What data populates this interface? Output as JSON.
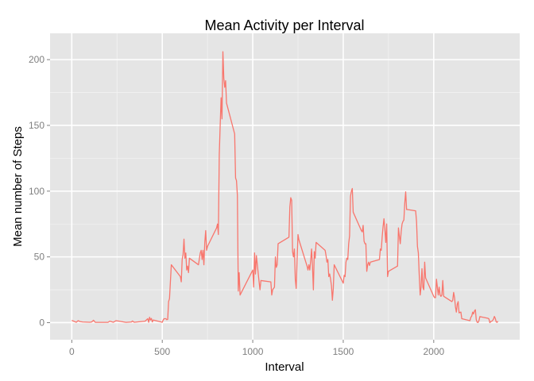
{
  "chart_data": {
    "type": "line",
    "title": "Mean Activity per Interval",
    "xlabel": "Interval",
    "ylabel": "Mean number of Steps",
    "xlim": [
      -120,
      2475
    ],
    "ylim": [
      -13,
      220
    ],
    "xticks": [
      0,
      500,
      1000,
      1500,
      2000
    ],
    "yticks": [
      0,
      50,
      100,
      150,
      200
    ],
    "grid": true,
    "series": [
      {
        "color": "#f8766d",
        "points": [
          [
            0,
            1.7
          ],
          [
            25,
            0.3
          ],
          [
            35,
            1.5
          ],
          [
            45,
            0.8
          ],
          [
            60,
            0.5
          ],
          [
            100,
            0.3
          ],
          [
            110,
            0.5
          ],
          [
            120,
            1.8
          ],
          [
            130,
            0.2
          ],
          [
            200,
            0.2
          ],
          [
            210,
            1.1
          ],
          [
            230,
            0.3
          ],
          [
            245,
            1.5
          ],
          [
            300,
            0.2
          ],
          [
            330,
            0.5
          ],
          [
            335,
            1.2
          ],
          [
            345,
            0.3
          ],
          [
            405,
            1.1
          ],
          [
            420,
            3.0
          ],
          [
            425,
            0.2
          ],
          [
            430,
            4.1
          ],
          [
            435,
            2.0
          ],
          [
            440,
            3.2
          ],
          [
            445,
            0.5
          ],
          [
            450,
            2.0
          ],
          [
            500,
            0.3
          ],
          [
            505,
            2.0
          ],
          [
            510,
            3.0
          ],
          [
            520,
            3.0
          ],
          [
            525,
            2.2
          ],
          [
            530,
            2.5
          ],
          [
            535,
            16.0
          ],
          [
            540,
            18.3
          ],
          [
            550,
            44.0
          ],
          [
            600,
            35.0
          ],
          [
            605,
            31.0
          ],
          [
            610,
            48.0
          ],
          [
            615,
            52.0
          ],
          [
            620,
            63.5
          ],
          [
            625,
            49.0
          ],
          [
            630,
            53.0
          ],
          [
            635,
            40.0
          ],
          [
            640,
            43.0
          ],
          [
            645,
            38.0
          ],
          [
            650,
            49.0
          ],
          [
            700,
            44.0
          ],
          [
            710,
            53.0
          ],
          [
            715,
            55.0
          ],
          [
            720,
            48.0
          ],
          [
            725,
            55.0
          ],
          [
            730,
            44.0
          ],
          [
            735,
            61.0
          ],
          [
            740,
            70.0
          ],
          [
            745,
            55.0
          ],
          [
            750,
            58.0
          ],
          [
            800,
            72.0
          ],
          [
            805,
            75.0
          ],
          [
            810,
            67.0
          ],
          [
            815,
            128.0
          ],
          [
            820,
            150.0
          ],
          [
            825,
            171.0
          ],
          [
            830,
            155.0
          ],
          [
            835,
            206.0
          ],
          [
            840,
            186.0
          ],
          [
            845,
            179.0
          ],
          [
            850,
            184.0
          ],
          [
            855,
            167.0
          ],
          [
            900,
            143.5
          ],
          [
            905,
            110.0
          ],
          [
            910,
            108.0
          ],
          [
            915,
            97.0
          ],
          [
            920,
            24.0
          ],
          [
            925,
            38.0
          ],
          [
            930,
            21.0
          ],
          [
            1000,
            40.0
          ],
          [
            1005,
            27.0
          ],
          [
            1010,
            53.0
          ],
          [
            1015,
            37.0
          ],
          [
            1020,
            51.0
          ],
          [
            1035,
            31.0
          ],
          [
            1040,
            25.0
          ],
          [
            1045,
            32.0
          ],
          [
            1100,
            31.0
          ],
          [
            1105,
            21.0
          ],
          [
            1110,
            25.0
          ],
          [
            1120,
            27.0
          ],
          [
            1125,
            50.0
          ],
          [
            1130,
            42.0
          ],
          [
            1135,
            44.0
          ],
          [
            1140,
            60.0
          ],
          [
            1200,
            65.0
          ],
          [
            1205,
            88.0
          ],
          [
            1210,
            95.0
          ],
          [
            1215,
            93.0
          ],
          [
            1220,
            54.0
          ],
          [
            1225,
            50.0
          ],
          [
            1230,
            56.0
          ],
          [
            1235,
            33.0
          ],
          [
            1240,
            26.0
          ],
          [
            1245,
            47.0
          ],
          [
            1250,
            67.0
          ],
          [
            1255,
            63.0
          ],
          [
            1300,
            43.0
          ],
          [
            1305,
            40.0
          ],
          [
            1310,
            44.0
          ],
          [
            1315,
            40.0
          ],
          [
            1320,
            47.0
          ],
          [
            1325,
            56.0
          ],
          [
            1330,
            43.0
          ],
          [
            1335,
            25.0
          ],
          [
            1340,
            54.0
          ],
          [
            1345,
            49.0
          ],
          [
            1350,
            61.0
          ],
          [
            1400,
            55.0
          ],
          [
            1405,
            51.0
          ],
          [
            1410,
            46.0
          ],
          [
            1415,
            48.0
          ],
          [
            1420,
            35.0
          ],
          [
            1425,
            37.0
          ],
          [
            1430,
            33.0
          ],
          [
            1435,
            28.0
          ],
          [
            1440,
            17.0
          ],
          [
            1445,
            26.0
          ],
          [
            1450,
            44.0
          ],
          [
            1500,
            30.0
          ],
          [
            1505,
            36.0
          ],
          [
            1510,
            35.0
          ],
          [
            1515,
            46.0
          ],
          [
            1520,
            49.0
          ],
          [
            1525,
            48.0
          ],
          [
            1530,
            60.0
          ],
          [
            1535,
            66.0
          ],
          [
            1540,
            96.0
          ],
          [
            1545,
            100.0
          ],
          [
            1550,
            102.0
          ],
          [
            1555,
            84.0
          ],
          [
            1600,
            70.0
          ],
          [
            1605,
            69.0
          ],
          [
            1610,
            74.0
          ],
          [
            1615,
            62.0
          ],
          [
            1620,
            60.0
          ],
          [
            1625,
            60.0
          ],
          [
            1630,
            39.0
          ],
          [
            1635,
            44.0
          ],
          [
            1640,
            46.0
          ],
          [
            1645,
            43.5
          ],
          [
            1650,
            46.0
          ],
          [
            1700,
            48.0
          ],
          [
            1705,
            56.0
          ],
          [
            1710,
            55.0
          ],
          [
            1715,
            65.0
          ],
          [
            1720,
            73.0
          ],
          [
            1725,
            79.0
          ],
          [
            1730,
            71.0
          ],
          [
            1735,
            61.0
          ],
          [
            1740,
            75.0
          ],
          [
            1745,
            35.0
          ],
          [
            1750,
            39.0
          ],
          [
            1800,
            43.0
          ],
          [
            1805,
            72.0
          ],
          [
            1810,
            66.0
          ],
          [
            1815,
            60.0
          ],
          [
            1820,
            69.0
          ],
          [
            1825,
            75.0
          ],
          [
            1830,
            77.0
          ],
          [
            1835,
            78.0
          ],
          [
            1840,
            91.0
          ],
          [
            1845,
            99.5
          ],
          [
            1850,
            86.0
          ],
          [
            1855,
            86.0
          ],
          [
            1900,
            85.0
          ],
          [
            1905,
            77.0
          ],
          [
            1910,
            58.0
          ],
          [
            1915,
            53.0
          ],
          [
            1920,
            36.0
          ],
          [
            1925,
            21.0
          ],
          [
            1930,
            27.0
          ],
          [
            1935,
            41.0
          ],
          [
            1940,
            27.0
          ],
          [
            1945,
            25.0
          ],
          [
            1950,
            46.0
          ],
          [
            1955,
            34.0
          ],
          [
            2000,
            20.0
          ],
          [
            2005,
            19.0
          ],
          [
            2010,
            19.0
          ],
          [
            2015,
            33.0
          ],
          [
            2020,
            27.0
          ],
          [
            2025,
            21.0
          ],
          [
            2030,
            27.0
          ],
          [
            2035,
            21.0
          ],
          [
            2040,
            20.0
          ],
          [
            2045,
            21.0
          ],
          [
            2050,
            32.0
          ],
          [
            2055,
            20.0
          ],
          [
            2100,
            16.0
          ],
          [
            2105,
            17.0
          ],
          [
            2110,
            23.0
          ],
          [
            2115,
            19.0
          ],
          [
            2120,
            12.0
          ],
          [
            2125,
            8.0
          ],
          [
            2130,
            14.0
          ],
          [
            2135,
            16.0
          ],
          [
            2140,
            7.4
          ],
          [
            2145,
            7.8
          ],
          [
            2150,
            8.0
          ],
          [
            2155,
            3.0
          ],
          [
            2200,
            1.5
          ],
          [
            2205,
            4.0
          ],
          [
            2210,
            5.0
          ],
          [
            2215,
            8.0
          ],
          [
            2220,
            6.6
          ],
          [
            2225,
            8.9
          ],
          [
            2230,
            9.8
          ],
          [
            2235,
            2.2
          ],
          [
            2240,
            0.3
          ],
          [
            2245,
            0.1
          ],
          [
            2250,
            1.6
          ],
          [
            2255,
            4.6
          ],
          [
            2300,
            3.3
          ],
          [
            2305,
            2.8
          ],
          [
            2310,
            0.0
          ],
          [
            2315,
            0.8
          ],
          [
            2320,
            1.0
          ],
          [
            2325,
            1.6
          ],
          [
            2330,
            2.6
          ],
          [
            2335,
            4.7
          ],
          [
            2340,
            3.3
          ],
          [
            2345,
            0.6
          ],
          [
            2350,
            0.2
          ],
          [
            2355,
            1.1
          ]
        ]
      }
    ]
  }
}
